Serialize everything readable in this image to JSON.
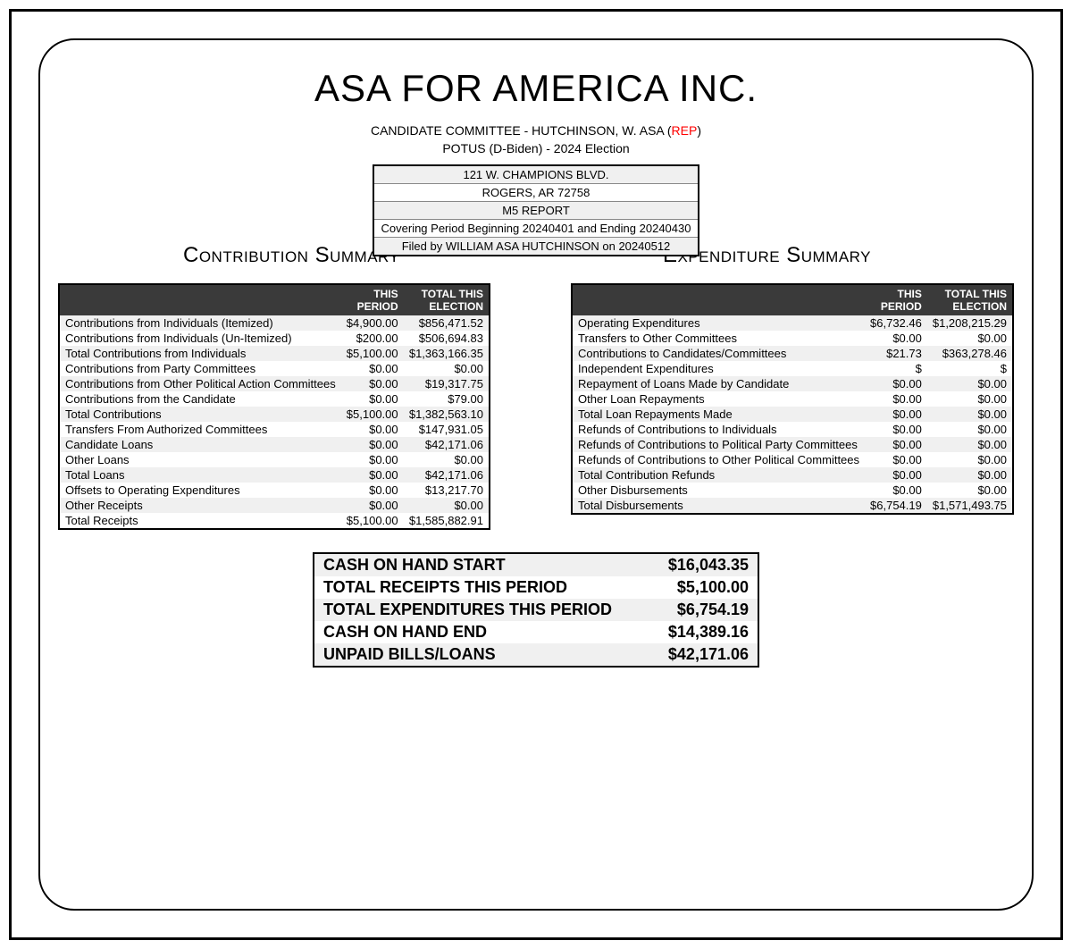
{
  "header": {
    "org_name": "ASA FOR AMERICA INC.",
    "candidate_prefix": "CANDIDATE COMMITTEE - HUTCHINSON, W. ASA (",
    "party": "REP",
    "candidate_suffix": ")",
    "election_line": "POTUS (D-Biden) - 2024 Election"
  },
  "info_box": {
    "address1": "121 W. CHAMPIONS BLVD.",
    "address2": "ROGERS, AR 72758",
    "report_type": "M5 REPORT",
    "period": "Covering Period Beginning 20240401 and Ending 20240430",
    "filed_by": "Filed by WILLIAM ASA HUTCHINSON on 20240512"
  },
  "section_titles": {
    "contribution": "Contribution Summary",
    "expenditure": "Expenditure Summary"
  },
  "table_headers": {
    "col1": "",
    "col2": "THIS PERIOD",
    "col3": "TOTAL THIS ELECTION"
  },
  "contributions": [
    {
      "label": "Contributions from Individuals (Itemized)",
      "period": "$4,900.00",
      "total": "$856,471.52"
    },
    {
      "label": "Contributions from Individuals (Un-Itemized)",
      "period": "$200.00",
      "total": "$506,694.83"
    },
    {
      "label": "Total Contributions from Individuals",
      "period": "$5,100.00",
      "total": "$1,363,166.35"
    },
    {
      "label": "Contributions from Party Committees",
      "period": "$0.00",
      "total": "$0.00"
    },
    {
      "label": "Contributions from Other Political Action Committees",
      "period": "$0.00",
      "total": "$19,317.75"
    },
    {
      "label": "Contributions from the Candidate",
      "period": "$0.00",
      "total": "$79.00"
    },
    {
      "label": "Total Contributions",
      "period": "$5,100.00",
      "total": "$1,382,563.10"
    },
    {
      "label": "Transfers From Authorized Committees",
      "period": "$0.00",
      "total": "$147,931.05"
    },
    {
      "label": "Candidate Loans",
      "period": "$0.00",
      "total": "$42,171.06"
    },
    {
      "label": "Other Loans",
      "period": "$0.00",
      "total": "$0.00"
    },
    {
      "label": "Total Loans",
      "period": "$0.00",
      "total": "$42,171.06"
    },
    {
      "label": "Offsets to Operating Expenditures",
      "period": "$0.00",
      "total": "$13,217.70"
    },
    {
      "label": "Other Receipts",
      "period": "$0.00",
      "total": "$0.00"
    },
    {
      "label": "Total Receipts",
      "period": "$5,100.00",
      "total": "$1,585,882.91"
    }
  ],
  "expenditures": [
    {
      "label": "Operating Expenditures",
      "period": "$6,732.46",
      "total": "$1,208,215.29"
    },
    {
      "label": "Transfers to Other Committees",
      "period": "$0.00",
      "total": "$0.00"
    },
    {
      "label": "Contributions to Candidates/Committees",
      "period": "$21.73",
      "total": "$363,278.46"
    },
    {
      "label": "Independent Expenditures",
      "period": "$",
      "total": "$"
    },
    {
      "label": "Repayment of Loans Made by Candidate",
      "period": "$0.00",
      "total": "$0.00"
    },
    {
      "label": "Other Loan Repayments",
      "period": "$0.00",
      "total": "$0.00"
    },
    {
      "label": "Total Loan Repayments Made",
      "period": "$0.00",
      "total": "$0.00"
    },
    {
      "label": "Refunds of Contributions to Individuals",
      "period": "$0.00",
      "total": "$0.00"
    },
    {
      "label": "Refunds of Contributions to Political Party Committees",
      "period": "$0.00",
      "total": "$0.00"
    },
    {
      "label": "Refunds of Contributions to Other Political Committees",
      "period": "$0.00",
      "total": "$0.00"
    },
    {
      "label": "Total Contribution Refunds",
      "period": "$0.00",
      "total": "$0.00"
    },
    {
      "label": "Other Disbursements",
      "period": "$0.00",
      "total": "$0.00"
    },
    {
      "label": "Total Disbursements",
      "period": "$6,754.19",
      "total": "$1,571,493.75"
    }
  ],
  "summary": [
    {
      "label": "CASH ON HAND START",
      "value": "$16,043.35"
    },
    {
      "label": "TOTAL RECEIPTS THIS PERIOD",
      "value": "$5,100.00"
    },
    {
      "label": "TOTAL EXPENDITURES THIS PERIOD",
      "value": "$6,754.19"
    },
    {
      "label": "CASH ON HAND END",
      "value": "$14,389.16"
    },
    {
      "label": "UNPAID BILLS/LOANS",
      "value": "$42,171.06"
    }
  ],
  "colors": {
    "header_bg": "#3a3a3a",
    "header_text": "#ffffff",
    "stripe_bg": "#f0f0f0",
    "party_color": "#ff0000",
    "border_color": "#000000"
  }
}
